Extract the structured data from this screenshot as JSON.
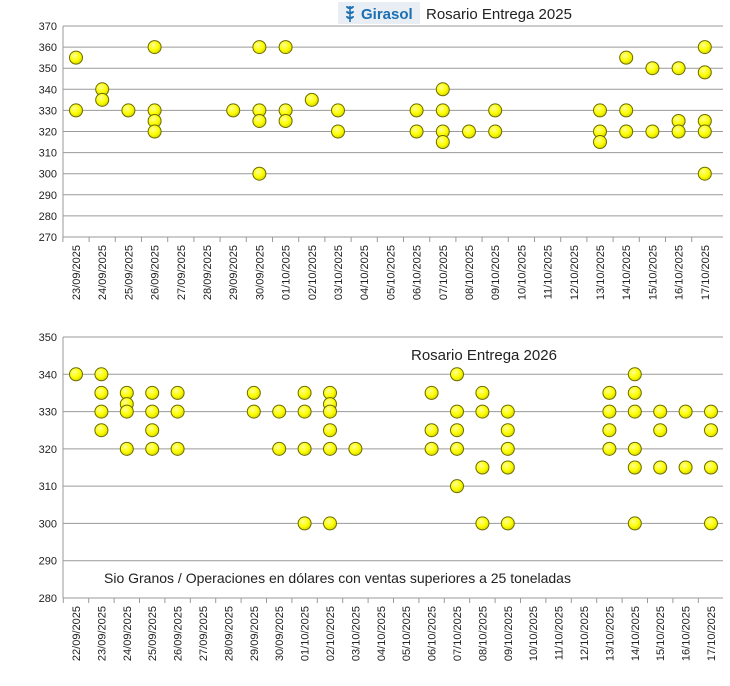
{
  "chart_data": [
    {
      "type": "scatter",
      "title": "Rosario Entrega 2025",
      "brand": "Girasol",
      "xlabel": "",
      "ylabel": "",
      "ylim": [
        270,
        370
      ],
      "ystep": 10,
      "categories": [
        "23/09/2025",
        "24/09/2025",
        "25/09/2025",
        "26/09/2025",
        "27/09/2025",
        "28/09/2025",
        "29/09/2025",
        "30/09/2025",
        "01/10/2025",
        "02/10/2025",
        "03/10/2025",
        "04/10/2025",
        "05/10/2025",
        "06/10/2025",
        "07/10/2025",
        "08/10/2025",
        "09/10/2025",
        "10/10/2025",
        "11/10/2025",
        "12/10/2025",
        "13/10/2025",
        "14/10/2025",
        "15/10/2025",
        "16/10/2025",
        "17/10/2025"
      ],
      "points": [
        {
          "x": "23/09/2025",
          "y": [
            355,
            330
          ]
        },
        {
          "x": "24/09/2025",
          "y": [
            340,
            335
          ]
        },
        {
          "x": "25/09/2025",
          "y": [
            330
          ]
        },
        {
          "x": "26/09/2025",
          "y": [
            360,
            330,
            325,
            320
          ]
        },
        {
          "x": "29/09/2025",
          "y": [
            330
          ]
        },
        {
          "x": "30/09/2025",
          "y": [
            360,
            330,
            325,
            300
          ]
        },
        {
          "x": "01/10/2025",
          "y": [
            360,
            330,
            325
          ]
        },
        {
          "x": "02/10/2025",
          "y": [
            335
          ]
        },
        {
          "x": "03/10/2025",
          "y": [
            330,
            320
          ]
        },
        {
          "x": "06/10/2025",
          "y": [
            330,
            320
          ]
        },
        {
          "x": "07/10/2025",
          "y": [
            340,
            330,
            320,
            315
          ]
        },
        {
          "x": "08/10/2025",
          "y": [
            320
          ]
        },
        {
          "x": "09/10/2025",
          "y": [
            330,
            320
          ]
        },
        {
          "x": "13/10/2025",
          "y": [
            330,
            320,
            315
          ]
        },
        {
          "x": "14/10/2025",
          "y": [
            355,
            330,
            320
          ]
        },
        {
          "x": "15/10/2025",
          "y": [
            350,
            320
          ]
        },
        {
          "x": "16/10/2025",
          "y": [
            350,
            325,
            320
          ]
        },
        {
          "x": "17/10/2025",
          "y": [
            360,
            348,
            325,
            320,
            300
          ]
        }
      ]
    },
    {
      "type": "scatter",
      "title": "Rosario Entrega 2026",
      "note": "Sio Granos / Operaciones en dólares con ventas superiores a 25 toneladas",
      "xlabel": "",
      "ylabel": "",
      "ylim": [
        280,
        350
      ],
      "ystep": 10,
      "categories": [
        "22/09/2025",
        "23/09/2025",
        "24/09/2025",
        "25/09/2025",
        "26/09/2025",
        "27/09/2025",
        "28/09/2025",
        "29/09/2025",
        "30/09/2025",
        "01/10/2025",
        "02/10/2025",
        "03/10/2025",
        "04/10/2025",
        "05/10/2025",
        "06/10/2025",
        "07/10/2025",
        "08/10/2025",
        "09/10/2025",
        "10/10/2025",
        "11/10/2025",
        "12/10/2025",
        "13/10/2025",
        "14/10/2025",
        "15/10/2025",
        "16/10/2025",
        "17/10/2025"
      ],
      "points": [
        {
          "x": "22/09/2025",
          "y": [
            340
          ]
        },
        {
          "x": "23/09/2025",
          "y": [
            340,
            335,
            330,
            325
          ]
        },
        {
          "x": "24/09/2025",
          "y": [
            335,
            332,
            330,
            320
          ]
        },
        {
          "x": "25/09/2025",
          "y": [
            335,
            330,
            325,
            320
          ]
        },
        {
          "x": "26/09/2025",
          "y": [
            335,
            330,
            320
          ]
        },
        {
          "x": "29/09/2025",
          "y": [
            335,
            330
          ]
        },
        {
          "x": "30/09/2025",
          "y": [
            330,
            320
          ]
        },
        {
          "x": "01/10/2025",
          "y": [
            335,
            330,
            320,
            300
          ]
        },
        {
          "x": "02/10/2025",
          "y": [
            335,
            332,
            330,
            325,
            320,
            300
          ]
        },
        {
          "x": "03/10/2025",
          "y": [
            320
          ]
        },
        {
          "x": "06/10/2025",
          "y": [
            335,
            325,
            320
          ]
        },
        {
          "x": "07/10/2025",
          "y": [
            340,
            330,
            325,
            320,
            310
          ]
        },
        {
          "x": "08/10/2025",
          "y": [
            335,
            330,
            315,
            300
          ]
        },
        {
          "x": "09/10/2025",
          "y": [
            330,
            325,
            320,
            315,
            300
          ]
        },
        {
          "x": "13/10/2025",
          "y": [
            335,
            330,
            325,
            320
          ]
        },
        {
          "x": "14/10/2025",
          "y": [
            340,
            335,
            330,
            320,
            315,
            300
          ]
        },
        {
          "x": "15/10/2025",
          "y": [
            330,
            325,
            315
          ]
        },
        {
          "x": "16/10/2025",
          "y": [
            330,
            315
          ]
        },
        {
          "x": "17/10/2025",
          "y": [
            330,
            325,
            315,
            300
          ]
        }
      ]
    }
  ],
  "colors": {
    "marker_fill": "#ffff00",
    "marker_stroke": "#6b6b00",
    "grid": "#9a9a9a",
    "brand": "#1b6fb3",
    "text": "#222222"
  },
  "icons": {
    "brand_logo": "wheat-icon"
  }
}
